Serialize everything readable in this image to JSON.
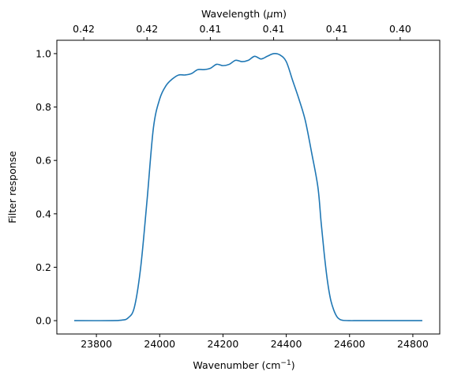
{
  "chart_data": {
    "type": "line",
    "xlabel": "Wavenumber (cm",
    "xlabel_sup": "−1",
    "xlabel_suffix": ")",
    "ylabel": "Filter response",
    "top_xlabel": "Wavelength (",
    "top_xlabel_mu": "μ",
    "top_xlabel_suffix": "m)",
    "xlim": [
      23675,
      24885
    ],
    "ylim": [
      -0.05,
      1.05
    ],
    "x_ticks": [
      23800,
      24000,
      24200,
      24400,
      24600,
      24800
    ],
    "x_tick_labels": [
      "23800",
      "24000",
      "24200",
      "24400",
      "24600",
      "24800"
    ],
    "y_ticks": [
      0.0,
      0.2,
      0.4,
      0.6,
      0.8,
      1.0
    ],
    "y_tick_labels": [
      "0.0",
      "0.2",
      "0.4",
      "0.6",
      "0.8",
      "1.0"
    ],
    "top_ticks_wavenumber": [
      23760,
      23960,
      24160,
      24360,
      24560,
      24760
    ],
    "top_tick_labels": [
      "0.42",
      "0.42",
      "0.41",
      "0.41",
      "0.41",
      "0.40"
    ],
    "line_color": "#1f77b4",
    "series": [
      {
        "x": [
          23730,
          23850,
          23880,
          23900,
          23920,
          23940,
          23960,
          23980,
          24000,
          24020,
          24040,
          24060,
          24080,
          24100,
          24120,
          24140,
          24160,
          24180,
          24200,
          24220,
          24240,
          24260,
          24280,
          24300,
          24320,
          24340,
          24360,
          24380,
          24400,
          24420,
          24440,
          24460,
          24480,
          24500,
          24510,
          24520,
          24530,
          24540,
          24550,
          24560,
          24570,
          24580,
          24600,
          24620,
          24640,
          24660,
          24680,
          24700,
          24830
        ],
        "y": [
          0.0,
          0.0,
          0.002,
          0.01,
          0.05,
          0.2,
          0.45,
          0.72,
          0.83,
          0.88,
          0.905,
          0.92,
          0.92,
          0.925,
          0.94,
          0.94,
          0.945,
          0.96,
          0.955,
          0.96,
          0.975,
          0.97,
          0.975,
          0.99,
          0.98,
          0.99,
          1.0,
          0.995,
          0.97,
          0.9,
          0.83,
          0.75,
          0.63,
          0.5,
          0.37,
          0.25,
          0.15,
          0.08,
          0.04,
          0.015,
          0.004,
          0.001,
          0.0,
          0.0,
          0.0,
          0.0,
          0.0,
          0.0,
          0.0
        ]
      }
    ]
  }
}
